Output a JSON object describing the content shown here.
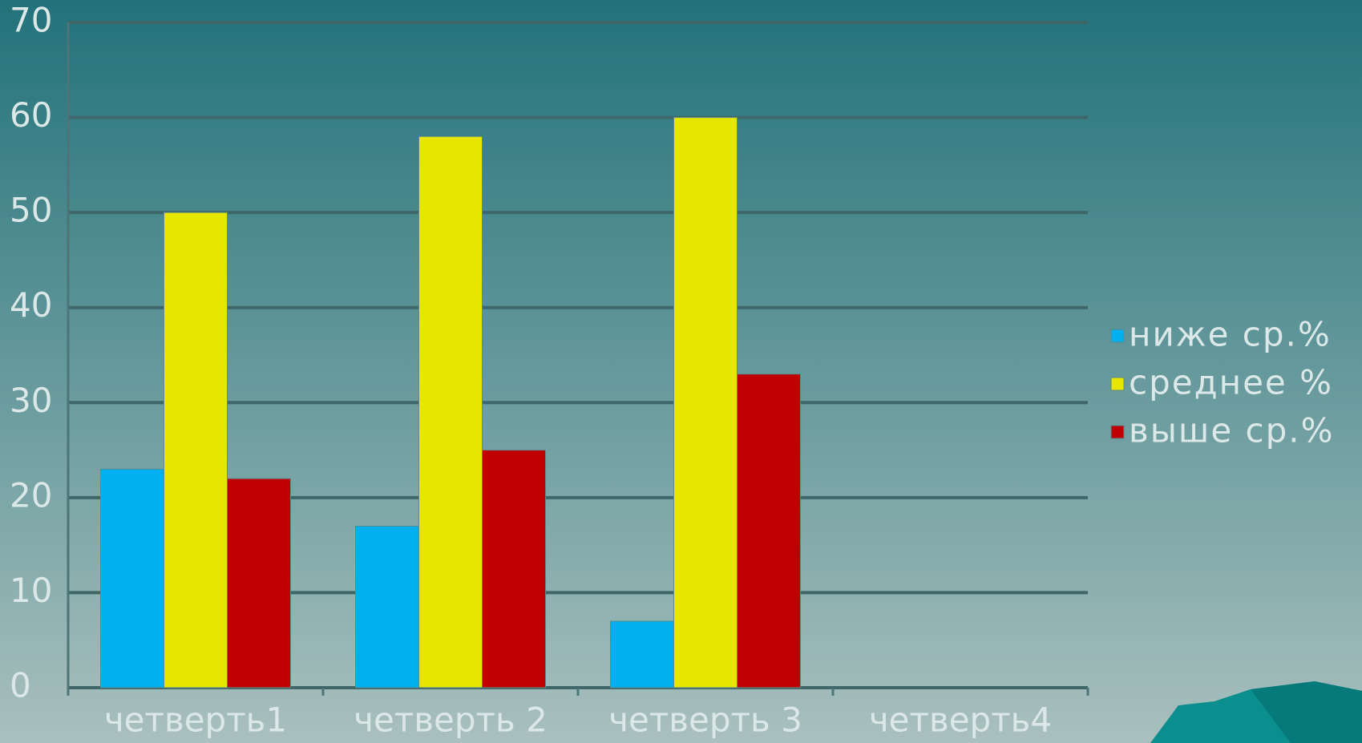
{
  "chart_data": {
    "type": "bar",
    "categories": [
      "четверть1",
      "четверть 2",
      "четверть 3",
      "четверть4"
    ],
    "series": [
      {
        "name": "ниже ср.%",
        "color": "#00b0f0",
        "values": [
          23,
          17,
          7,
          null
        ]
      },
      {
        "name": "среднее %",
        "color": "#e6e600",
        "values": [
          50,
          58,
          60,
          null
        ]
      },
      {
        "name": "выше ср.%",
        "color": "#c00000",
        "values": [
          22,
          25,
          33,
          null
        ]
      }
    ],
    "ylim": [
      0,
      70
    ],
    "yticks": [
      0,
      10,
      20,
      30,
      40,
      50,
      60,
      70
    ],
    "grid": true,
    "legend": "right"
  }
}
